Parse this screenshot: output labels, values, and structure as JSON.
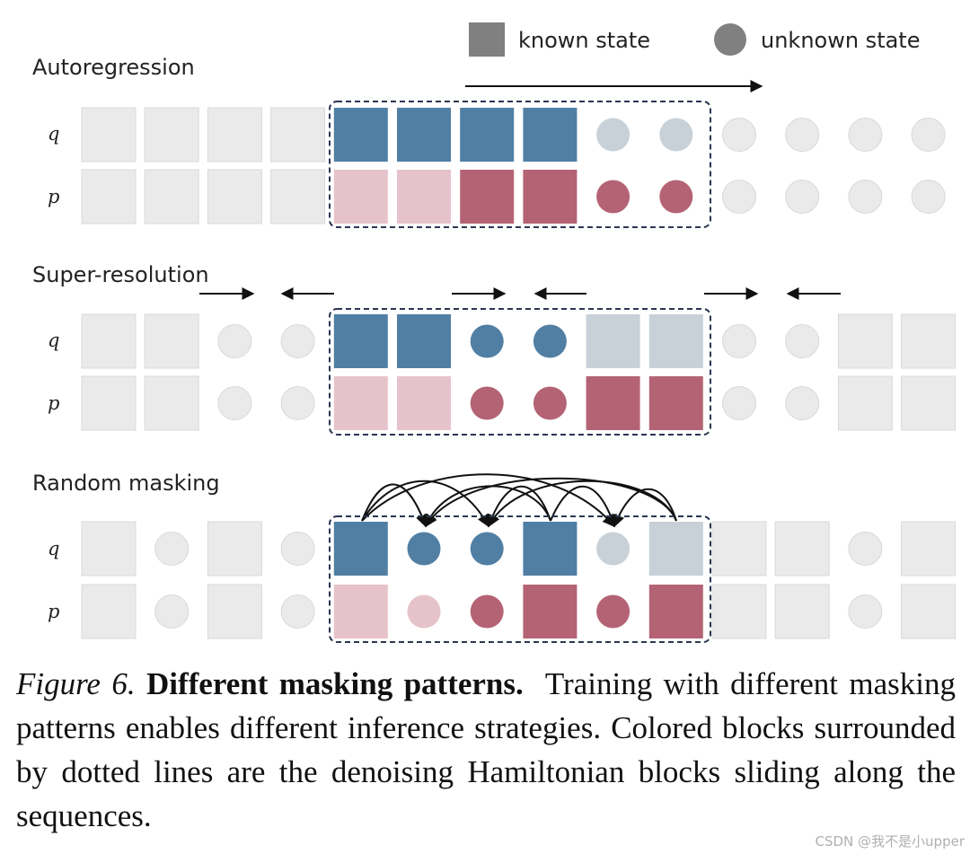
{
  "legend": {
    "known": "known state",
    "unknown": "unknown state"
  },
  "row_labels": {
    "q": "q",
    "p": "p"
  },
  "colors": {
    "blue": "#517fa4",
    "blue_light": "#c8d1d8",
    "red": "#b46375",
    "red_light": "#e6c3cb",
    "gray": "#eaeaea",
    "gray_stroke": "#d9d9d9",
    "frame": "#2c3552"
  },
  "panels": [
    {
      "title": "Autoregression",
      "q": [
        "g-sq",
        "g-sq",
        "g-sq",
        "g-sq",
        "B-sq",
        "B-sq",
        "B-sq",
        "B-sq",
        "b-ci",
        "b-ci",
        "g-ci",
        "g-ci",
        "g-ci",
        "g-ci"
      ],
      "p": [
        "g-sq",
        "g-sq",
        "g-sq",
        "g-sq",
        "r-sq",
        "r-sq",
        "R-sq",
        "R-sq",
        "R-ci",
        "R-ci",
        "g-ci",
        "g-ci",
        "g-ci",
        "g-ci"
      ]
    },
    {
      "title": "Super-resolution",
      "q": [
        "g-sq",
        "g-sq",
        "g-ci",
        "g-ci",
        "B-sq",
        "B-sq",
        "B-ci",
        "B-ci",
        "b-sq",
        "b-sq",
        "g-ci",
        "g-ci",
        "g-sq",
        "g-sq"
      ],
      "p": [
        "g-sq",
        "g-sq",
        "g-ci",
        "g-ci",
        "r-sq",
        "r-sq",
        "R-ci",
        "R-ci",
        "R-sq",
        "R-sq",
        "g-ci",
        "g-ci",
        "g-sq",
        "g-sq"
      ]
    },
    {
      "title": "Random masking",
      "q": [
        "g-sq",
        "g-ci",
        "g-sq",
        "g-ci",
        "B-sq",
        "B-ci",
        "B-ci",
        "B-sq",
        "b-ci",
        "b-sq",
        "g-sq",
        "g-sq",
        "g-ci",
        "g-sq"
      ],
      "p": [
        "g-sq",
        "g-ci",
        "g-sq",
        "g-ci",
        "r-sq",
        "r-ci",
        "R-ci",
        "R-sq",
        "R-ci",
        "R-sq",
        "g-sq",
        "g-sq",
        "g-ci",
        "g-sq"
      ]
    }
  ],
  "caption": {
    "fig_label": "Figure 6.",
    "bold_title": "Different masking patterns.",
    "body": "Training with different masking patterns enables different inference strategies. Colored blocks surrounded by dotted lines are the denoising Hamiltonian blocks sliding along the sequences."
  },
  "watermark": "CSDN @我不是小upper"
}
